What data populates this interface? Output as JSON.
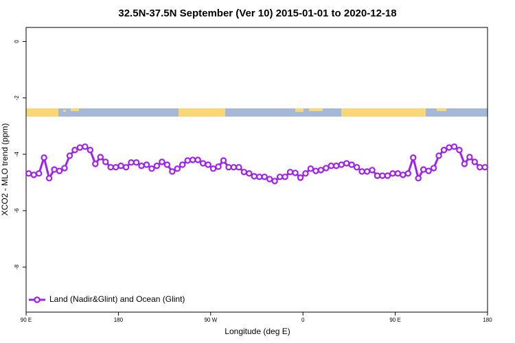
{
  "chart_data": {
    "type": "line",
    "title": "32.5N-37.5N September (Ver 10)   2015-01-01 to 2020-12-18",
    "x_label": "Longitude (deg E)",
    "y_label": "XCO2 - MLO trend (ppm)",
    "xlim": [
      90,
      540
    ],
    "ylim": [
      -9.6,
      0.5
    ],
    "xticks": [
      {
        "value": 90,
        "label": "90 E"
      },
      180,
      {
        "value": 270,
        "label": "90 W"
      },
      {
        "value": 360,
        "label": "0"
      },
      {
        "value": 450,
        "label": "90 E"
      },
      {
        "value": 540,
        "label": "180"
      }
    ],
    "yticks": [
      0,
      -2,
      -4,
      -6,
      -8
    ],
    "legend": "bottom-left",
    "x": [
      92.5,
      97.5,
      102.5,
      107.5,
      112.5,
      117.5,
      122.5,
      127.5,
      132.5,
      137.5,
      142.5,
      147.5,
      152.5,
      157.5,
      162.5,
      167.5,
      172.5,
      177.5,
      182.5,
      187.5,
      192.5,
      197.5,
      202.5,
      207.5,
      212.5,
      217.5,
      222.5,
      227.5,
      232.5,
      237.5,
      242.5,
      247.5,
      252.5,
      257.5,
      262.5,
      267.5,
      272.5,
      277.5,
      282.5,
      287.5,
      292.5,
      297.5,
      302.5,
      307.5,
      312.5,
      317.5,
      322.5,
      327.5,
      332.5,
      337.5,
      342.5,
      347.5,
      352.5,
      357.5,
      362.5,
      367.5,
      372.5,
      377.5,
      382.5,
      387.5,
      392.5,
      397.5,
      402.5,
      407.5,
      412.5,
      417.5,
      422.5,
      427.5,
      432.5,
      437.5,
      442.5,
      447.5,
      452.5,
      457.5,
      462.5,
      467.5,
      472.5,
      477.5,
      482.5,
      487.5,
      492.5,
      497.5,
      502.5,
      507.5,
      512.5,
      517.5,
      522.5,
      527.5,
      532.5,
      537.5
    ],
    "series": [
      {
        "name": "Land (Nadir&Glint) and Ocean (Glint)",
        "color": "#a020f0",
        "values": [
          -4.68,
          -4.73,
          -4.68,
          -4.12,
          -4.85,
          -4.54,
          -4.59,
          -4.49,
          -4.05,
          -3.85,
          -3.76,
          -3.73,
          -3.85,
          -4.34,
          -4.1,
          -4.27,
          -4.46,
          -4.46,
          -4.41,
          -4.46,
          -4.29,
          -4.29,
          -4.41,
          -4.37,
          -4.51,
          -4.41,
          -4.27,
          -4.37,
          -4.61,
          -4.51,
          -4.37,
          -4.22,
          -4.2,
          -4.2,
          -4.32,
          -4.37,
          -4.51,
          -4.44,
          -4.22,
          -4.46,
          -4.46,
          -4.46,
          -4.63,
          -4.68,
          -4.78,
          -4.8,
          -4.8,
          -4.88,
          -4.95,
          -4.8,
          -4.8,
          -4.63,
          -4.66,
          -4.83,
          -4.68,
          -4.51,
          -4.59,
          -4.56,
          -4.49,
          -4.41,
          -4.41,
          -4.37,
          -4.32,
          -4.37,
          -4.46,
          -4.61,
          -4.61,
          -4.56,
          -4.76,
          -4.76,
          -4.76,
          -4.68,
          -4.68,
          -4.73,
          -4.68,
          -4.12,
          -4.85,
          -4.54,
          -4.59,
          -4.49,
          -4.05,
          -3.85,
          -3.76,
          -3.73,
          -3.85,
          -4.34,
          -4.1,
          -4.27,
          -4.46,
          -4.46
        ]
      }
    ]
  }
}
